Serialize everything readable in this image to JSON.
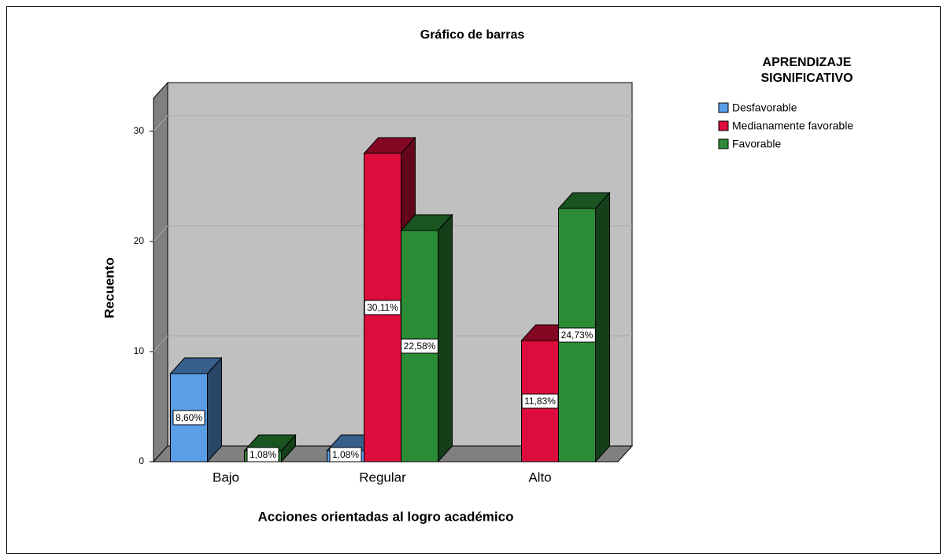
{
  "chart_data": {
    "type": "bar3d",
    "title": "Gráfico de barras",
    "x_label": "Acciones orientadas al logro académico",
    "y_label": "Recuento",
    "categories": [
      "Bajo",
      "Regular",
      "Alto"
    ],
    "legend_title": [
      "APRENDIZAJE",
      "SIGNIFICATIVO"
    ],
    "series": [
      {
        "name": "Desfavorable",
        "color": "#5b9ee8",
        "values": [
          8,
          1,
          null
        ],
        "percent_labels": [
          "8,60%",
          "1,08%",
          null
        ]
      },
      {
        "name": "Medianamente favorable",
        "color": "#dc0c3c",
        "values": [
          null,
          28,
          11
        ],
        "percent_labels": [
          null,
          "30,11%",
          "11,83%"
        ]
      },
      {
        "name": "Favorable",
        "color": "#2c8c36",
        "values": [
          1,
          21,
          23
        ],
        "percent_labels": [
          "1,08%",
          "22,58%",
          "24,73%"
        ]
      }
    ],
    "ylim": [
      0,
      33
    ],
    "yticks": [
      0,
      10,
      20,
      30
    ],
    "grid": true,
    "legend_position": "right"
  }
}
